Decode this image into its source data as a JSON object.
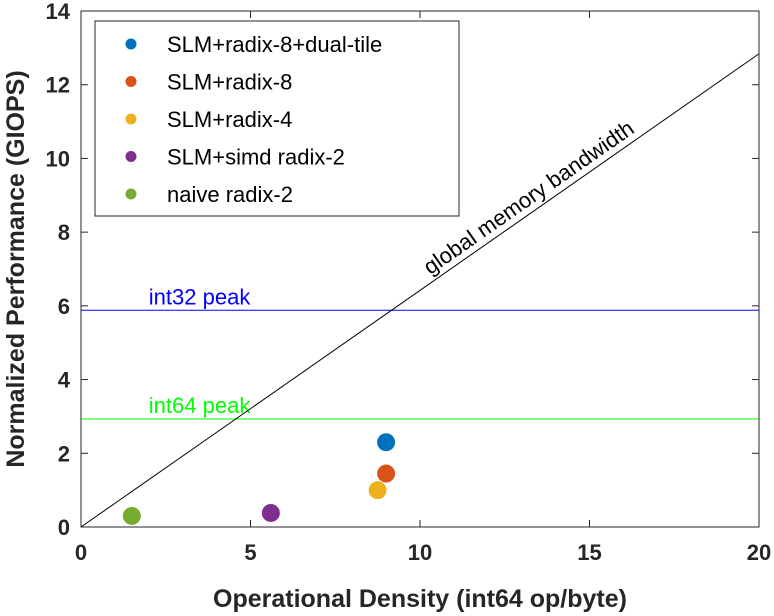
{
  "chart_data": {
    "type": "scatter",
    "xlabel": "Operational Density (int64 op/byte)",
    "ylabel": "Normalized Performance (GIOPS)",
    "xlim": [
      0,
      20
    ],
    "ylim": [
      0,
      14
    ],
    "xticks": [
      0,
      5,
      10,
      15,
      20
    ],
    "yticks": [
      0,
      2,
      4,
      6,
      8,
      10,
      12,
      14
    ],
    "grid": false,
    "legend_position": "top-left",
    "series": [
      {
        "name": "SLM+radix-8+dual-tile",
        "color": "#0072BD",
        "points": [
          {
            "x": 9.0,
            "y": 2.3
          }
        ]
      },
      {
        "name": "SLM+radix-8",
        "color": "#D95319",
        "points": [
          {
            "x": 9.0,
            "y": 1.45
          }
        ]
      },
      {
        "name": "SLM+radix-4",
        "color": "#EDB120",
        "points": [
          {
            "x": 8.75,
            "y": 1.0
          }
        ]
      },
      {
        "name": "SLM+simd radix-2",
        "color": "#7E2F8E",
        "points": [
          {
            "x": 5.6,
            "y": 0.38
          }
        ]
      },
      {
        "name": "naive radix-2",
        "color": "#77AC30",
        "points": [
          {
            "x": 1.5,
            "y": 0.3
          }
        ]
      }
    ],
    "reference_lines": [
      {
        "label": "int32 peak",
        "type": "horizontal",
        "y": 5.88,
        "color": "#0000FF"
      },
      {
        "label": "int64 peak",
        "type": "horizontal",
        "y": 2.93,
        "color": "#00FF00"
      },
      {
        "label": "global memory bandwidth",
        "type": "diagonal",
        "slope": 0.642,
        "color": "#000000"
      }
    ]
  }
}
